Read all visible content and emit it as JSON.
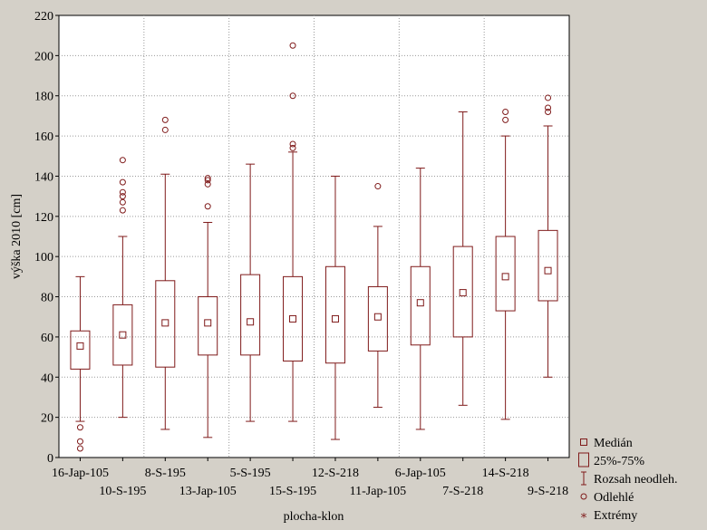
{
  "chart_data": {
    "type": "boxplot",
    "xlabel": "plocha-klon",
    "ylabel": "výška 2010 [cm]",
    "ylim": [
      0,
      220
    ],
    "yticks": [
      0,
      20,
      40,
      60,
      80,
      100,
      120,
      140,
      160,
      180,
      200,
      220
    ],
    "grid": true,
    "legend_position": "bottom-right",
    "color": "#7f1a1a",
    "categories": [
      "16-Jap-105",
      "10-S-195",
      "8-S-195",
      "13-Jap-105",
      "5-S-195",
      "15-S-195",
      "12-S-218",
      "11-Jap-105",
      "6-Jap-105",
      "7-S-218",
      "14-S-218",
      "9-S-218"
    ],
    "boxes": [
      {
        "median": 55.5,
        "q1": 44,
        "q3": 63,
        "whisker_low": 18,
        "whisker_high": 90,
        "outliers": [
          15,
          8,
          4.5
        ]
      },
      {
        "median": 61,
        "q1": 46,
        "q3": 76,
        "whisker_low": 20,
        "whisker_high": 110,
        "outliers": [
          123,
          127,
          130,
          132,
          137,
          148
        ]
      },
      {
        "median": 67,
        "q1": 45,
        "q3": 88,
        "whisker_low": 14,
        "whisker_high": 141,
        "outliers": [
          163,
          168
        ]
      },
      {
        "median": 67,
        "q1": 51,
        "q3": 80,
        "whisker_low": 10,
        "whisker_high": 117,
        "outliers": [
          125,
          136,
          138,
          139
        ]
      },
      {
        "median": 67.5,
        "q1": 51,
        "q3": 91,
        "whisker_low": 18,
        "whisker_high": 146,
        "outliers": []
      },
      {
        "median": 69,
        "q1": 48,
        "q3": 90,
        "whisker_low": 18,
        "whisker_high": 152,
        "outliers": [
          154,
          156,
          180,
          205
        ]
      },
      {
        "median": 69,
        "q1": 47,
        "q3": 95,
        "whisker_low": 9,
        "whisker_high": 140,
        "outliers": []
      },
      {
        "median": 70,
        "q1": 53,
        "q3": 85,
        "whisker_low": 25,
        "whisker_high": 115,
        "outliers": [
          135
        ]
      },
      {
        "median": 77,
        "q1": 56,
        "q3": 95,
        "whisker_low": 14,
        "whisker_high": 144,
        "outliers": []
      },
      {
        "median": 82,
        "q1": 60,
        "q3": 105,
        "whisker_low": 26,
        "whisker_high": 172,
        "outliers": []
      },
      {
        "median": 90,
        "q1": 73,
        "q3": 110,
        "whisker_low": 19,
        "whisker_high": 160,
        "outliers": [
          168,
          172
        ]
      },
      {
        "median": 93,
        "q1": 78,
        "q3": 113,
        "whisker_low": 40,
        "whisker_high": 165,
        "outliers": [
          172,
          174,
          179
        ]
      }
    ],
    "legend": [
      {
        "symbol": "median",
        "label": "Medián"
      },
      {
        "symbol": "box",
        "label": "25%-75%"
      },
      {
        "symbol": "whisker",
        "label": "Rozsah neodleh."
      },
      {
        "symbol": "outlier",
        "label": "Odlehlé"
      },
      {
        "symbol": "extreme",
        "label": "Extrémy"
      }
    ]
  }
}
